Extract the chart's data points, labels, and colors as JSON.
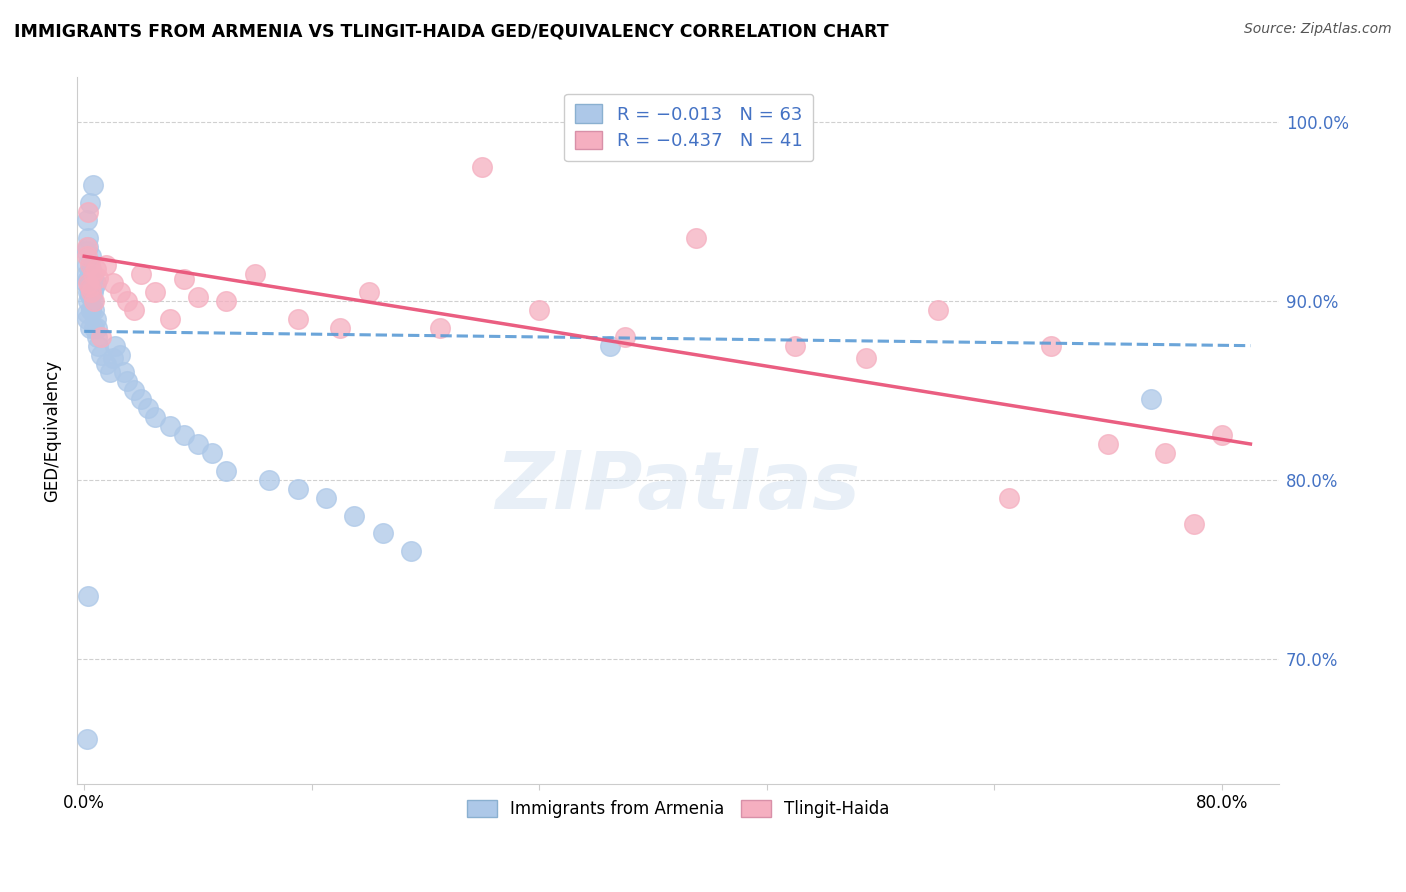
{
  "title": "IMMIGRANTS FROM ARMENIA VS TLINGIT-HAIDA GED/EQUIVALENCY CORRELATION CHART",
  "source": "Source: ZipAtlas.com",
  "ylabel": "GED/Equivalency",
  "blue_color": "#adc8e8",
  "pink_color": "#f5afc0",
  "blue_line_color": "#5b9bd5",
  "pink_line_color": "#e9557a",
  "x_min": -0.005,
  "x_max": 0.84,
  "y_min": 63.0,
  "y_max": 102.5,
  "ytick_positions": [
    70,
    80,
    90,
    100
  ],
  "ytick_labels": [
    "70.0%",
    "80.0%",
    "90.0%",
    "100.0%"
  ],
  "blue_x": [
    0.002,
    0.004,
    0.006,
    0.003,
    0.005,
    0.002,
    0.004,
    0.001,
    0.003,
    0.005,
    0.002,
    0.004,
    0.006,
    0.003,
    0.005,
    0.007,
    0.002,
    0.004,
    0.003,
    0.005,
    0.001,
    0.006,
    0.004,
    0.002,
    0.008,
    0.003,
    0.005,
    0.007,
    0.009,
    0.004,
    0.006,
    0.008,
    0.005,
    0.007,
    0.009,
    0.01,
    0.012,
    0.015,
    0.018,
    0.02,
    0.022,
    0.025,
    0.028,
    0.03,
    0.035,
    0.04,
    0.045,
    0.05,
    0.06,
    0.07,
    0.08,
    0.09,
    0.1,
    0.13,
    0.15,
    0.17,
    0.19,
    0.21,
    0.23,
    0.37,
    0.002,
    0.003,
    0.75
  ],
  "blue_y": [
    94.5,
    95.5,
    96.5,
    93.5,
    92.5,
    91.5,
    90.5,
    91.0,
    90.0,
    89.5,
    92.0,
    91.5,
    90.5,
    93.0,
    91.8,
    90.8,
    89.0,
    88.5,
    91.2,
    90.2,
    92.8,
    91.3,
    90.3,
    89.3,
    91.0,
    90.5,
    89.5,
    88.5,
    88.0,
    91.5,
    90.0,
    89.0,
    90.5,
    89.5,
    88.5,
    87.5,
    87.0,
    86.5,
    86.0,
    86.8,
    87.5,
    87.0,
    86.0,
    85.5,
    85.0,
    84.5,
    84.0,
    83.5,
    83.0,
    82.5,
    82.0,
    81.5,
    80.5,
    80.0,
    79.5,
    79.0,
    78.0,
    77.0,
    76.0,
    87.5,
    65.5,
    73.5,
    84.5
  ],
  "pink_x": [
    0.002,
    0.004,
    0.006,
    0.003,
    0.005,
    0.008,
    0.01,
    0.002,
    0.004,
    0.015,
    0.02,
    0.025,
    0.03,
    0.035,
    0.04,
    0.05,
    0.06,
    0.07,
    0.08,
    0.1,
    0.12,
    0.15,
    0.18,
    0.2,
    0.25,
    0.28,
    0.32,
    0.38,
    0.43,
    0.5,
    0.55,
    0.6,
    0.65,
    0.68,
    0.72,
    0.76,
    0.78,
    0.8,
    0.003,
    0.007,
    0.012
  ],
  "pink_y": [
    93.0,
    92.0,
    91.5,
    91.0,
    90.5,
    91.8,
    91.3,
    92.5,
    90.8,
    92.0,
    91.0,
    90.5,
    90.0,
    89.5,
    91.5,
    90.5,
    89.0,
    91.2,
    90.2,
    90.0,
    91.5,
    89.0,
    88.5,
    90.5,
    88.5,
    97.5,
    89.5,
    88.0,
    93.5,
    87.5,
    86.8,
    89.5,
    79.0,
    87.5,
    82.0,
    81.5,
    77.5,
    82.5,
    95.0,
    90.0,
    88.0
  ],
  "blue_line_x": [
    0.0,
    0.82
  ],
  "blue_line_y": [
    88.3,
    87.5
  ],
  "pink_line_x": [
    0.0,
    0.82
  ],
  "pink_line_y": [
    92.5,
    82.0
  ]
}
